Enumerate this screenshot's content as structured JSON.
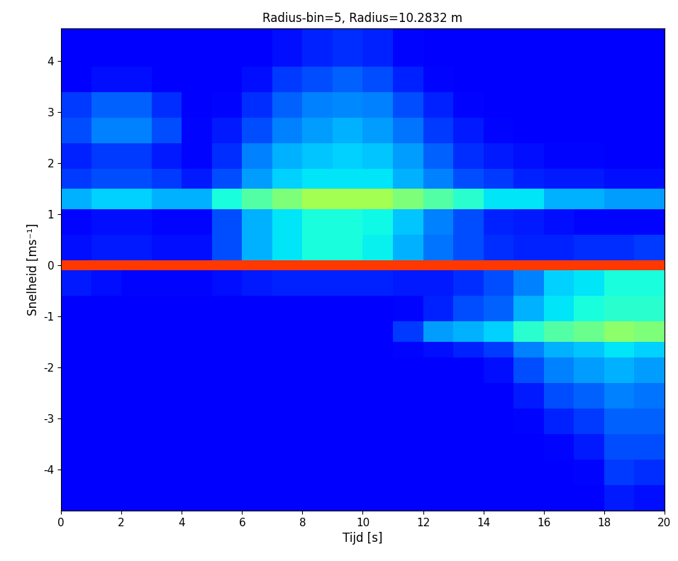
{
  "chart_data": {
    "type": "heatmap",
    "title": "Radius-bin=5, Radius=10.2832 m",
    "x_label": "Tijd [s]",
    "y_label": "Snelheid [ms⁻¹]",
    "color": "jet",
    "xlim": [
      0,
      20
    ],
    "ylim": [
      -4.8,
      4.65
    ],
    "xticks": [
      0,
      2,
      4,
      6,
      8,
      10,
      12,
      14,
      16,
      18,
      20
    ],
    "yticks": [
      -4,
      -3,
      -2,
      -1,
      0,
      1,
      2,
      3,
      4
    ],
    "x_edges": [
      0,
      1,
      2,
      3,
      4,
      5,
      6,
      7,
      8,
      9,
      10,
      11,
      12,
      13,
      14,
      15,
      16,
      17,
      18,
      19,
      20
    ],
    "y_edges": [
      -4.8,
      -4.3,
      -3.8,
      -3.3,
      -2.8,
      -2.3,
      -1.8,
      -1.5,
      -1.1,
      -0.6,
      -0.1,
      0.1,
      0.6,
      1.1,
      1.5,
      1.9,
      2.4,
      2.9,
      3.4,
      3.9,
      4.65
    ],
    "color_range": [
      0,
      1
    ],
    "cells": [
      [
        0.11,
        0.11,
        0.11,
        0.11,
        0.11,
        0.11,
        0.11,
        0.11,
        0.11,
        0.11,
        0.11,
        0.11,
        0.11,
        0.11,
        0.11,
        0.11,
        0.11,
        0.12,
        0.15,
        0.14
      ],
      [
        0.11,
        0.11,
        0.11,
        0.11,
        0.11,
        0.11,
        0.11,
        0.11,
        0.11,
        0.11,
        0.11,
        0.11,
        0.11,
        0.11,
        0.11,
        0.11,
        0.12,
        0.13,
        0.18,
        0.17
      ],
      [
        0.11,
        0.11,
        0.11,
        0.11,
        0.11,
        0.11,
        0.11,
        0.11,
        0.11,
        0.11,
        0.11,
        0.11,
        0.11,
        0.11,
        0.11,
        0.11,
        0.13,
        0.15,
        0.2,
        0.2
      ],
      [
        0.11,
        0.11,
        0.11,
        0.11,
        0.11,
        0.11,
        0.11,
        0.11,
        0.11,
        0.11,
        0.11,
        0.11,
        0.11,
        0.11,
        0.11,
        0.13,
        0.16,
        0.18,
        0.22,
        0.22
      ],
      [
        0.11,
        0.11,
        0.11,
        0.11,
        0.11,
        0.11,
        0.11,
        0.11,
        0.11,
        0.11,
        0.11,
        0.11,
        0.11,
        0.11,
        0.11,
        0.15,
        0.2,
        0.22,
        0.25,
        0.24
      ],
      [
        0.11,
        0.11,
        0.11,
        0.11,
        0.11,
        0.11,
        0.11,
        0.11,
        0.11,
        0.11,
        0.11,
        0.11,
        0.11,
        0.11,
        0.14,
        0.2,
        0.25,
        0.28,
        0.3,
        0.28
      ],
      [
        0.11,
        0.11,
        0.11,
        0.11,
        0.11,
        0.11,
        0.11,
        0.11,
        0.11,
        0.11,
        0.11,
        0.13,
        0.14,
        0.16,
        0.18,
        0.25,
        0.3,
        0.32,
        0.35,
        0.33
      ],
      [
        0.12,
        0.12,
        0.12,
        0.12,
        0.12,
        0.12,
        0.12,
        0.12,
        0.12,
        0.12,
        0.12,
        0.18,
        0.28,
        0.3,
        0.33,
        0.4,
        0.45,
        0.48,
        0.52,
        0.5
      ],
      [
        0.12,
        0.12,
        0.12,
        0.12,
        0.12,
        0.12,
        0.12,
        0.12,
        0.12,
        0.12,
        0.12,
        0.13,
        0.16,
        0.2,
        0.22,
        0.3,
        0.35,
        0.38,
        0.4,
        0.4
      ],
      [
        0.15,
        0.14,
        0.13,
        0.13,
        0.13,
        0.14,
        0.15,
        0.16,
        0.16,
        0.16,
        0.16,
        0.15,
        0.15,
        0.17,
        0.2,
        0.25,
        0.33,
        0.35,
        0.38,
        0.38
      ],
      [
        0.85,
        0.85,
        0.85,
        0.85,
        0.85,
        0.85,
        0.85,
        0.85,
        0.85,
        0.85,
        0.85,
        0.85,
        0.85,
        0.85,
        0.85,
        0.85,
        0.85,
        0.85,
        0.85,
        0.85
      ],
      [
        0.14,
        0.15,
        0.15,
        0.14,
        0.14,
        0.2,
        0.3,
        0.35,
        0.38,
        0.38,
        0.36,
        0.3,
        0.24,
        0.2,
        0.17,
        0.16,
        0.16,
        0.17,
        0.17,
        0.18
      ],
      [
        0.13,
        0.14,
        0.14,
        0.13,
        0.13,
        0.2,
        0.3,
        0.35,
        0.38,
        0.38,
        0.37,
        0.32,
        0.25,
        0.2,
        0.16,
        0.15,
        0.14,
        0.13,
        0.13,
        0.13
      ],
      [
        0.3,
        0.33,
        0.33,
        0.3,
        0.3,
        0.38,
        0.45,
        0.5,
        0.55,
        0.55,
        0.55,
        0.5,
        0.45,
        0.4,
        0.35,
        0.35,
        0.3,
        0.3,
        0.28,
        0.28
      ],
      [
        0.18,
        0.2,
        0.2,
        0.18,
        0.15,
        0.2,
        0.28,
        0.33,
        0.35,
        0.35,
        0.35,
        0.3,
        0.25,
        0.2,
        0.18,
        0.16,
        0.15,
        0.15,
        0.14,
        0.14
      ],
      [
        0.16,
        0.18,
        0.18,
        0.15,
        0.13,
        0.17,
        0.25,
        0.3,
        0.32,
        0.33,
        0.32,
        0.28,
        0.22,
        0.17,
        0.15,
        0.14,
        0.13,
        0.13,
        0.12,
        0.12
      ],
      [
        0.2,
        0.25,
        0.25,
        0.2,
        0.13,
        0.15,
        0.2,
        0.25,
        0.28,
        0.3,
        0.28,
        0.24,
        0.18,
        0.15,
        0.13,
        0.12,
        0.12,
        0.12,
        0.12,
        0.12
      ],
      [
        0.18,
        0.22,
        0.22,
        0.17,
        0.12,
        0.13,
        0.17,
        0.22,
        0.25,
        0.26,
        0.25,
        0.2,
        0.16,
        0.13,
        0.12,
        0.12,
        0.12,
        0.12,
        0.12,
        0.12
      ],
      [
        0.12,
        0.14,
        0.14,
        0.12,
        0.12,
        0.12,
        0.14,
        0.18,
        0.2,
        0.22,
        0.2,
        0.16,
        0.13,
        0.12,
        0.12,
        0.12,
        0.11,
        0.11,
        0.11,
        0.11
      ],
      [
        0.11,
        0.12,
        0.12,
        0.11,
        0.11,
        0.11,
        0.12,
        0.14,
        0.16,
        0.17,
        0.16,
        0.13,
        0.12,
        0.11,
        0.11,
        0.11,
        0.11,
        0.11,
        0.11,
        0.11
      ]
    ]
  }
}
